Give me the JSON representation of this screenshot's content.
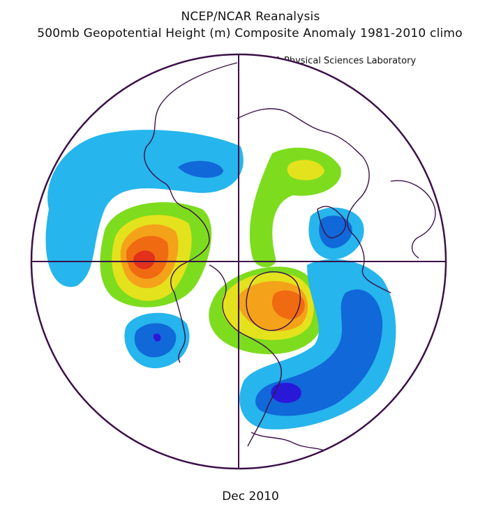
{
  "header": {
    "title": "NCEP/NCAR Reanalysis",
    "subtitle": "500mb Geopotential Height (m) Composite Anomaly 1981-2010 climo",
    "credit": "NOAA Physical Sciences Laboratory"
  },
  "footer": {
    "date": "Dec 2010"
  },
  "map": {
    "projection": "north-polar-stereographic",
    "colors": {
      "outline": "#3b1048",
      "neg_1": "#26b5ec",
      "neg_2": "#1168d8",
      "neg_3": "#1a3fc4",
      "neg_4": "#2a18d9",
      "pos_1": "#7ddc1e",
      "pos_2": "#e4e21c",
      "pos_3": "#f4a21a",
      "pos_4": "#f06a12",
      "pos_5": "#e2301a"
    }
  }
}
